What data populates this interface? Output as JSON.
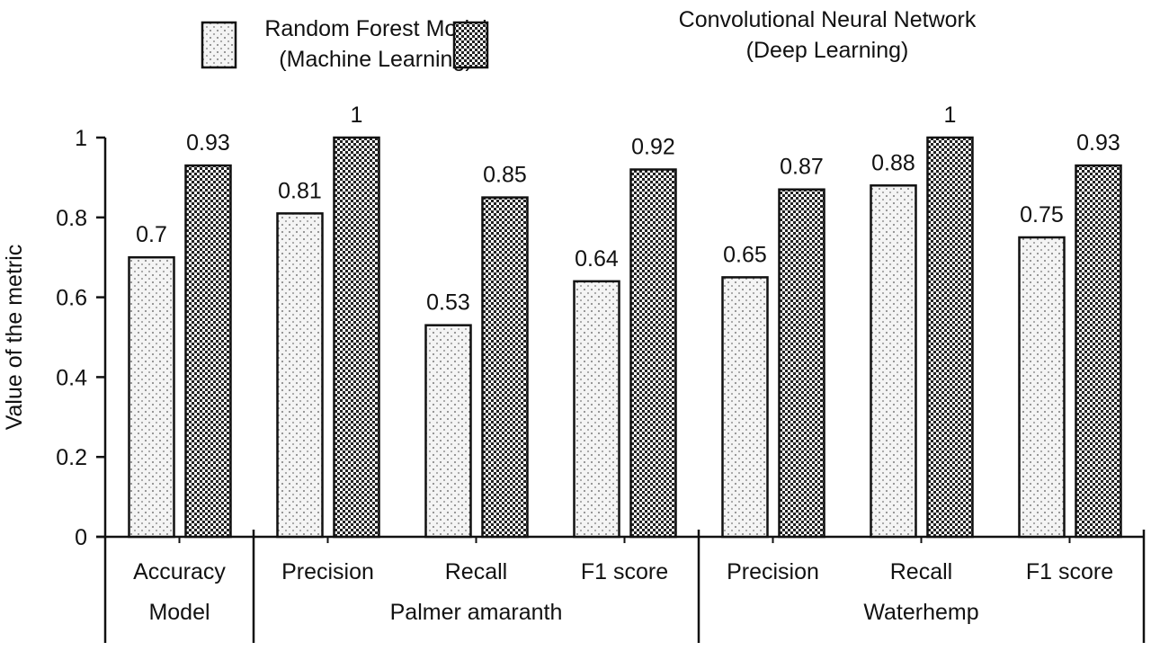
{
  "chart_data": {
    "type": "bar",
    "title": "",
    "ylabel": "Value of the metric",
    "xlabel": "",
    "ylim": [
      0,
      1
    ],
    "yticks": [
      "0",
      "0.2",
      "0.4",
      "0.6",
      "0.8",
      "1"
    ],
    "grid": false,
    "legend_position": "top",
    "categories": [
      "Accuracy",
      "Precision",
      "Recall",
      "F1 score",
      "Precision",
      "Recall",
      "F1 score"
    ],
    "groups": [
      {
        "label": "Model",
        "span": 1
      },
      {
        "label": "Palmer amaranth",
        "span": 3
      },
      {
        "label": "Waterhemp",
        "span": 3
      }
    ],
    "series": [
      {
        "name": "Random Forest Model",
        "name_line2": "(Machine Learning)",
        "pattern": "dots",
        "values": [
          0.7,
          0.81,
          0.53,
          0.64,
          0.65,
          0.88,
          0.75
        ],
        "labels": [
          "0.7",
          "0.81",
          "0.53",
          "0.64",
          "0.65",
          "0.88",
          "0.75"
        ]
      },
      {
        "name": "Convolutional Neural Network",
        "name_line2": "(Deep Learning)",
        "pattern": "checker",
        "values": [
          0.93,
          1,
          0.85,
          0.92,
          0.87,
          1,
          0.93
        ],
        "labels": [
          "0.93",
          "1",
          "0.85",
          "0.92",
          "0.87",
          "1",
          "0.93"
        ]
      }
    ]
  }
}
